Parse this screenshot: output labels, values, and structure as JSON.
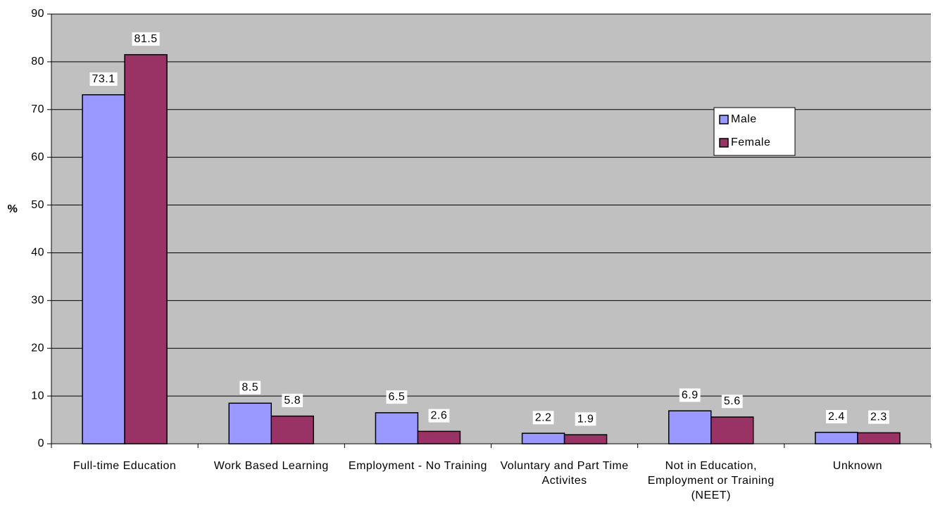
{
  "chart_data": {
    "type": "bar",
    "y_label": "%",
    "categories": [
      "Full-time Education",
      "Work Based Learning",
      "Employment - No Training",
      "Voluntary and Part Time Activites",
      "Not in Education, Employment or Training (NEET)",
      "Unknown"
    ],
    "series": [
      {
        "name": "Male",
        "color": "#9999ff",
        "values": [
          73.1,
          8.5,
          6.5,
          2.2,
          6.9,
          2.4
        ]
      },
      {
        "name": "Female",
        "color": "#993366",
        "values": [
          81.5,
          5.8,
          2.6,
          1.9,
          5.6,
          2.3
        ]
      }
    ],
    "ylim": [
      0,
      90
    ],
    "yticks": [
      0,
      10,
      20,
      30,
      40,
      50,
      60,
      70,
      80,
      90
    ],
    "grid": true,
    "plot_background": "#c0c0c0",
    "legend": "upper right"
  }
}
